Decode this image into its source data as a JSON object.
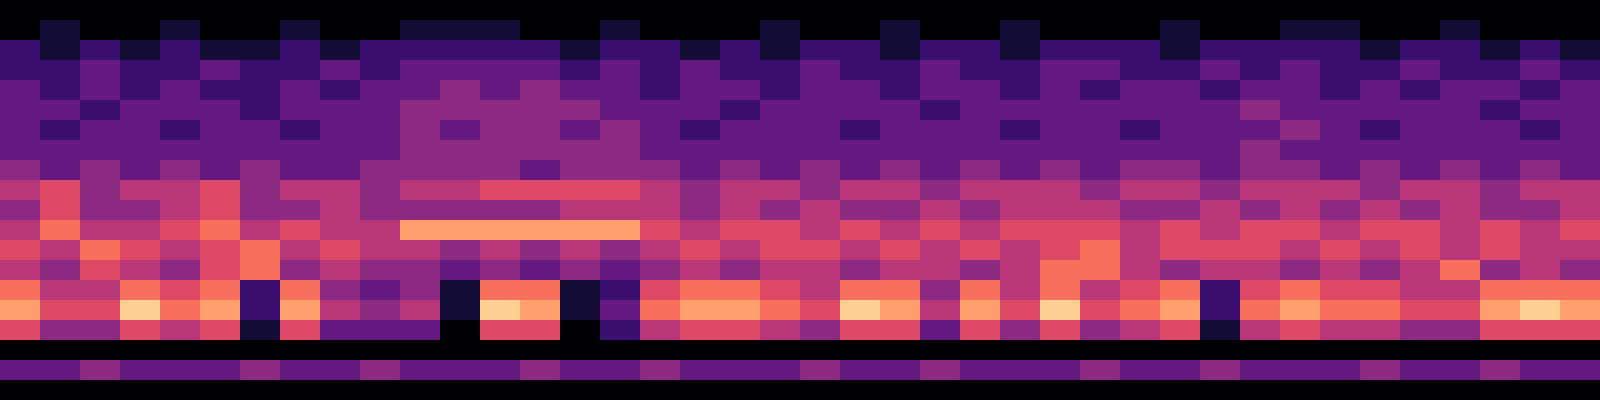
{
  "chart_data": {
    "type": "heatmap",
    "tick_labels": false,
    "zlim": [
      0,
      9
    ],
    "cells": [
      [
        0,
        0,
        0,
        0,
        0,
        0,
        0,
        0,
        0,
        0,
        0,
        0,
        0,
        0,
        0,
        0,
        0,
        0,
        0,
        0,
        0,
        0,
        0,
        0,
        0,
        0,
        0,
        0,
        0,
        0,
        0,
        0,
        0,
        0,
        0,
        0,
        0,
        0,
        0,
        0
      ],
      [
        0,
        1,
        0,
        0,
        1,
        0,
        0,
        1,
        0,
        0,
        1,
        1,
        1,
        0,
        0,
        1,
        0,
        0,
        0,
        1,
        0,
        0,
        1,
        0,
        0,
        1,
        0,
        0,
        0,
        1,
        0,
        0,
        1,
        1,
        0,
        0,
        1,
        0,
        0,
        0
      ],
      [
        2,
        1,
        2,
        1,
        2,
        1,
        1,
        2,
        1,
        2,
        2,
        2,
        2,
        2,
        1,
        2,
        2,
        1,
        2,
        1,
        2,
        2,
        1,
        2,
        2,
        1,
        2,
        2,
        2,
        1,
        2,
        2,
        2,
        2,
        1,
        2,
        2,
        1,
        2,
        1
      ],
      [
        2,
        2,
        3,
        2,
        2,
        3,
        2,
        2,
        3,
        2,
        3,
        3,
        3,
        3,
        2,
        3,
        2,
        3,
        2,
        2,
        3,
        2,
        2,
        3,
        2,
        2,
        3,
        3,
        2,
        2,
        3,
        2,
        3,
        2,
        2,
        3,
        2,
        2,
        3,
        2
      ],
      [
        3,
        2,
        3,
        2,
        3,
        2,
        2,
        3,
        2,
        3,
        3,
        4,
        3,
        4,
        3,
        3,
        2,
        3,
        3,
        2,
        3,
        3,
        2,
        3,
        3,
        2,
        3,
        2,
        3,
        3,
        2,
        3,
        3,
        2,
        3,
        2,
        3,
        3,
        2,
        3
      ],
      [
        3,
        3,
        2,
        3,
        3,
        3,
        2,
        3,
        3,
        3,
        4,
        4,
        4,
        4,
        4,
        3,
        3,
        3,
        2,
        3,
        3,
        3,
        3,
        2,
        3,
        3,
        3,
        3,
        3,
        3,
        3,
        4,
        3,
        3,
        3,
        3,
        3,
        2,
        3,
        3
      ],
      [
        3,
        2,
        3,
        3,
        2,
        3,
        3,
        2,
        3,
        3,
        4,
        3,
        4,
        4,
        3,
        4,
        3,
        2,
        3,
        3,
        3,
        2,
        3,
        3,
        3,
        2,
        3,
        3,
        2,
        3,
        3,
        3,
        4,
        3,
        2,
        3,
        3,
        3,
        2,
        3
      ],
      [
        3,
        3,
        3,
        3,
        3,
        3,
        3,
        3,
        3,
        3,
        4,
        4,
        4,
        4,
        4,
        4,
        3,
        3,
        3,
        3,
        3,
        3,
        3,
        3,
        3,
        3,
        3,
        3,
        3,
        3,
        3,
        4,
        3,
        3,
        3,
        3,
        3,
        3,
        3,
        3
      ],
      [
        4,
        3,
        4,
        3,
        4,
        3,
        4,
        3,
        3,
        4,
        4,
        4,
        4,
        3,
        4,
        4,
        4,
        3,
        4,
        3,
        4,
        3,
        4,
        3,
        4,
        3,
        4,
        3,
        4,
        4,
        3,
        4,
        4,
        3,
        4,
        3,
        4,
        3,
        4,
        3
      ],
      [
        5,
        6,
        4,
        5,
        5,
        6,
        4,
        5,
        5,
        4,
        5,
        5,
        6,
        6,
        6,
        6,
        5,
        4,
        5,
        5,
        4,
        5,
        5,
        4,
        5,
        5,
        5,
        4,
        5,
        5,
        4,
        5,
        5,
        5,
        4,
        5,
        5,
        4,
        5,
        5
      ],
      [
        4,
        6,
        4,
        4,
        5,
        6,
        4,
        4,
        5,
        4,
        4,
        4,
        4,
        4,
        5,
        5,
        5,
        4,
        5,
        4,
        5,
        4,
        4,
        5,
        4,
        5,
        5,
        5,
        4,
        4,
        5,
        4,
        5,
        4,
        5,
        4,
        5,
        4,
        4,
        5
      ],
      [
        5,
        7,
        5,
        5,
        6,
        7,
        5,
        6,
        5,
        5,
        8,
        8,
        8,
        8,
        8,
        8,
        6,
        5,
        6,
        6,
        5,
        6,
        5,
        6,
        5,
        6,
        6,
        6,
        5,
        6,
        5,
        6,
        6,
        5,
        6,
        6,
        5,
        6,
        5,
        6
      ],
      [
        6,
        5,
        7,
        6,
        5,
        6,
        7,
        5,
        6,
        5,
        5,
        4,
        5,
        4,
        5,
        4,
        5,
        6,
        5,
        6,
        6,
        5,
        6,
        5,
        6,
        5,
        6,
        7,
        5,
        6,
        6,
        6,
        5,
        6,
        5,
        6,
        5,
        6,
        5,
        5
      ],
      [
        5,
        4,
        6,
        5,
        4,
        6,
        7,
        4,
        5,
        4,
        4,
        3,
        4,
        3,
        4,
        3,
        4,
        5,
        4,
        5,
        5,
        4,
        5,
        5,
        4,
        5,
        7,
        7,
        5,
        4,
        5,
        5,
        4,
        5,
        4,
        5,
        7,
        4,
        5,
        4
      ],
      [
        7,
        5,
        5,
        7,
        6,
        7,
        2,
        7,
        4,
        3,
        4,
        1,
        7,
        7,
        1,
        2,
        6,
        7,
        7,
        6,
        5,
        7,
        7,
        4,
        7,
        5,
        7,
        5,
        6,
        7,
        2,
        6,
        7,
        6,
        6,
        5,
        5,
        7,
        7,
        7
      ],
      [
        8,
        6,
        6,
        9,
        7,
        8,
        2,
        8,
        5,
        4,
        5,
        1,
        9,
        8,
        1,
        3,
        7,
        8,
        8,
        7,
        6,
        9,
        8,
        5,
        8,
        6,
        9,
        6,
        7,
        8,
        2,
        7,
        8,
        7,
        7,
        6,
        6,
        8,
        9,
        8
      ],
      [
        6,
        4,
        4,
        6,
        5,
        6,
        1,
        6,
        3,
        3,
        3,
        0,
        6,
        6,
        0,
        2,
        5,
        6,
        6,
        5,
        4,
        6,
        6,
        3,
        6,
        4,
        6,
        4,
        5,
        6,
        1,
        5,
        6,
        5,
        5,
        4,
        4,
        6,
        6,
        6
      ],
      [
        0,
        0,
        0,
        0,
        0,
        0,
        0,
        0,
        0,
        0,
        0,
        0,
        0,
        0,
        0,
        0,
        0,
        0,
        0,
        0,
        0,
        0,
        0,
        0,
        0,
        0,
        0,
        0,
        0,
        0,
        0,
        0,
        0,
        0,
        0,
        0,
        0,
        0,
        0,
        0
      ],
      [
        3,
        3,
        4,
        3,
        3,
        3,
        4,
        3,
        3,
        4,
        3,
        3,
        3,
        4,
        3,
        3,
        4,
        3,
        3,
        3,
        4,
        3,
        3,
        4,
        3,
        3,
        3,
        4,
        3,
        3,
        4,
        3,
        3,
        3,
        4,
        3,
        3,
        4,
        3,
        3
      ],
      [
        0,
        0,
        0,
        0,
        0,
        0,
        0,
        0,
        0,
        0,
        0,
        0,
        0,
        0,
        0,
        0,
        0,
        0,
        0,
        0,
        0,
        0,
        0,
        0,
        0,
        0,
        0,
        0,
        0,
        0,
        0,
        0,
        0,
        0,
        0,
        0,
        0,
        0,
        0,
        0
      ]
    ]
  }
}
